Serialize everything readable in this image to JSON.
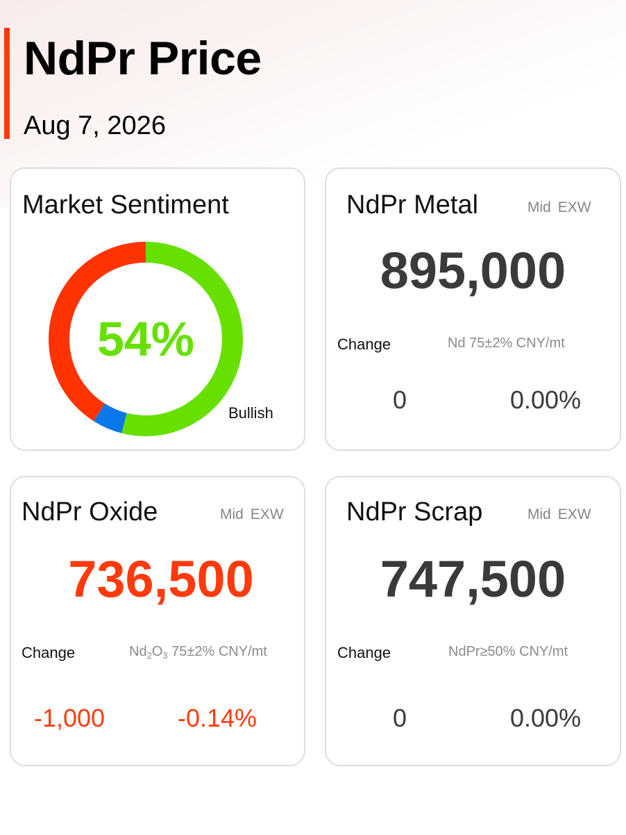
{
  "page": {
    "title": "NdPr Price",
    "date": "Aug 7, 2026",
    "accent_color": "#ff3a0c"
  },
  "sentiment": {
    "title": "Market Sentiment",
    "percent_label": "54%",
    "legend_label": "Bullish",
    "segments": [
      {
        "value": 54,
        "color": "#66e000"
      },
      {
        "value": 5,
        "color": "#0a78e8"
      },
      {
        "value": 41,
        "color": "#ff3300"
      }
    ]
  },
  "metal": {
    "title": "NdPr Metal",
    "tag_mid": "Mid",
    "tag_exw": "EXW",
    "price": "895,000",
    "change_label": "Change",
    "spec": "Nd 75±2% CNY/mt",
    "change_value": "0",
    "change_percent": "0.00%"
  },
  "oxide": {
    "title": "NdPr Oxide",
    "tag_mid": "Mid",
    "tag_exw": "EXW",
    "price": "736,500",
    "change_label": "Change",
    "spec_prefix": "Nd",
    "spec_sub1": "2",
    "spec_mid": "O",
    "spec_sub2": "3",
    "spec_suffix": " 75±2% CNY/mt",
    "change_value": "-1,000",
    "change_percent": "-0.14%",
    "down_color": "#ff3a0c"
  },
  "scrap": {
    "title": "NdPr Scrap",
    "tag_mid": "Mid",
    "tag_exw": "EXW",
    "price": "747,500",
    "change_label": "Change",
    "spec": "NdPr≥50% CNY/mt",
    "change_value": "0",
    "change_percent": "0.00%"
  }
}
